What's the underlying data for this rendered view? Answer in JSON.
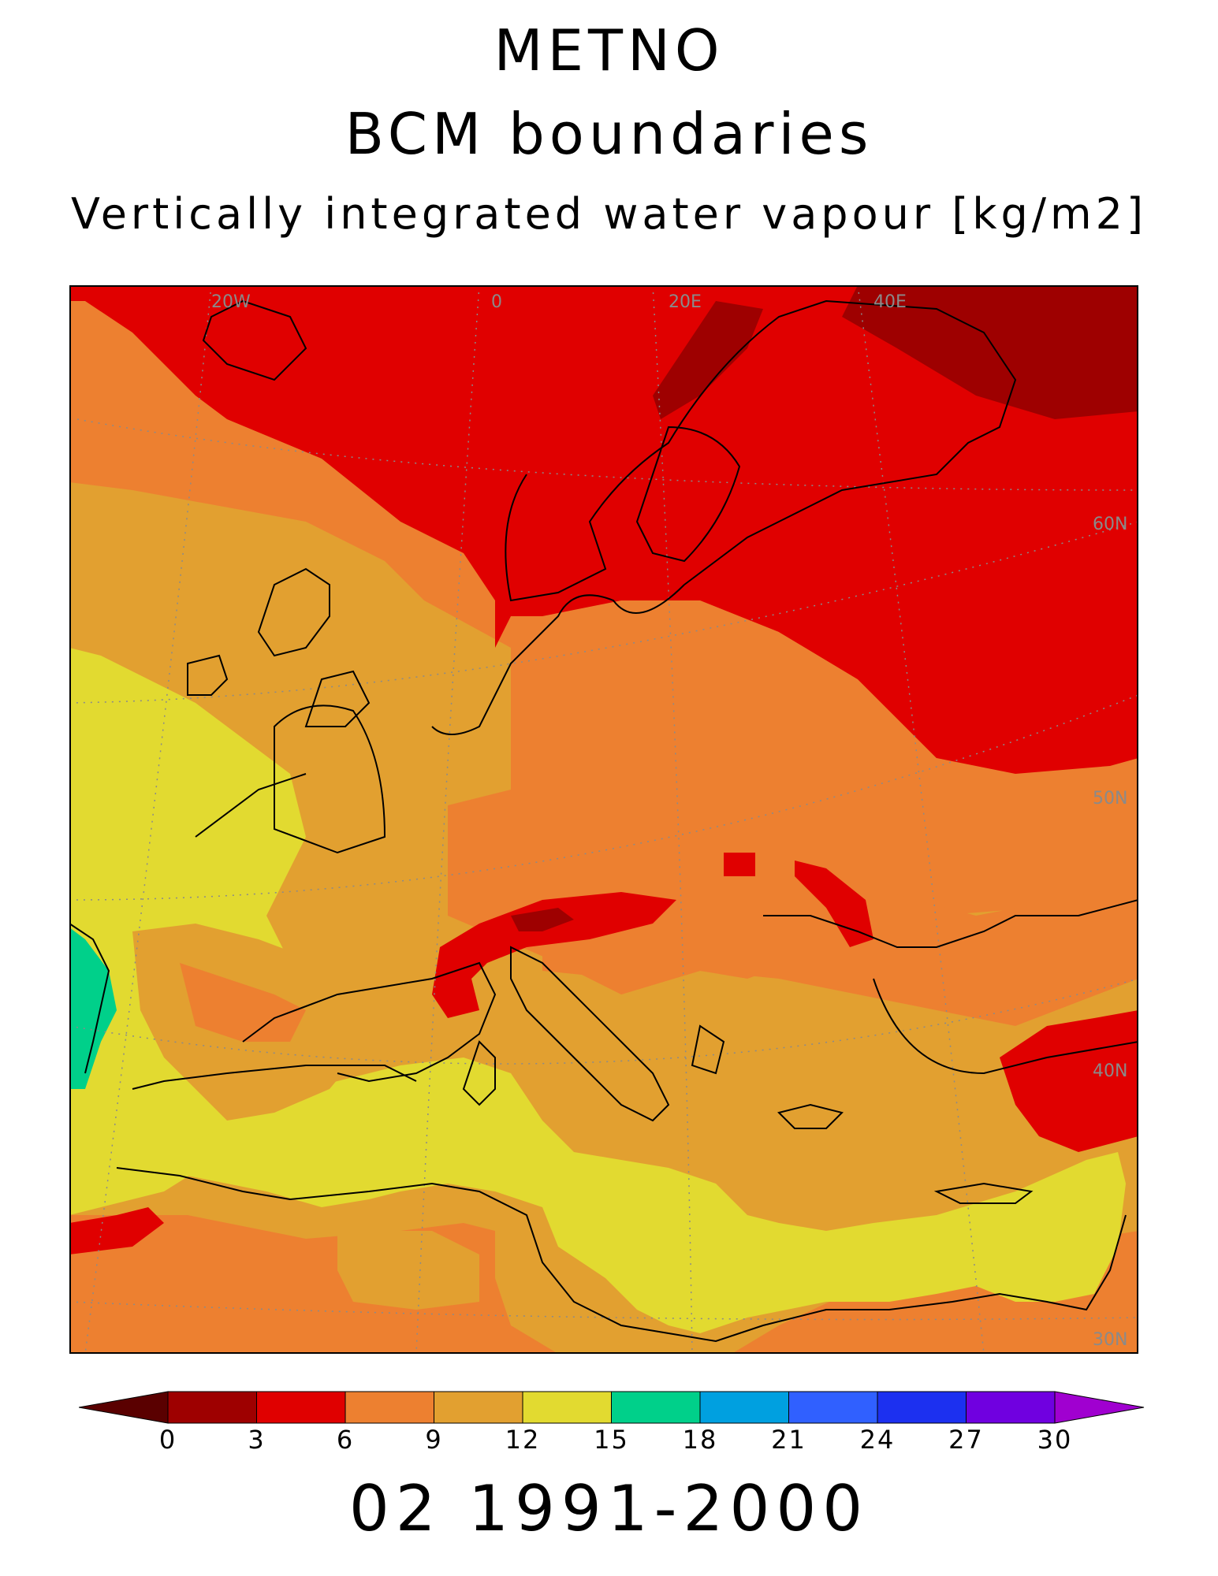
{
  "titles": {
    "line1": "METNO",
    "line2": "BCM boundaries",
    "line3": "Vertically integrated water vapour [kg/m2]"
  },
  "map": {
    "region": "Europe",
    "grid_labels": {
      "longitudes": [
        "20W",
        "0",
        "20E",
        "40E"
      ],
      "latitudes": [
        "60N",
        "50N",
        "40N",
        "30N"
      ]
    },
    "colors": {
      "0-3": "#9e0000",
      "3-6": "#e00000",
      "6-9": "#ed8030",
      "9-12": "#e2a030",
      "12-15": "#e2da30",
      "15-18": "#00d08a",
      "coastline": "#000000",
      "gridline": "#8a8a8a"
    }
  },
  "colorbar": {
    "ticks": [
      "0",
      "3",
      "6",
      "9",
      "12",
      "15",
      "18",
      "21",
      "24",
      "27",
      "30"
    ],
    "colors": [
      "#5a0000",
      "#9e0000",
      "#e00000",
      "#ed8030",
      "#e2a030",
      "#e2da30",
      "#00d08a",
      "#00a0e0",
      "#3060ff",
      "#1c30f0",
      "#7000e0",
      "#a000d0"
    ]
  },
  "footer": {
    "period": "02 1991-2000"
  }
}
